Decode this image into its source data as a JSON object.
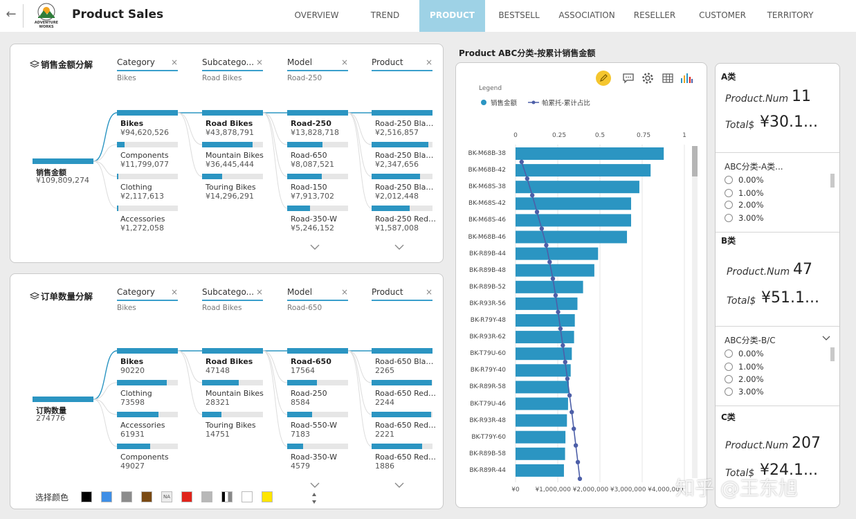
{
  "header": {
    "title": "Product Sales",
    "logo_text": [
      "ADVENTURE",
      "WORKS"
    ],
    "tabs": [
      {
        "label": "OVERVIEW",
        "active": false
      },
      {
        "label": "TREND",
        "active": false
      },
      {
        "label": "PRODUCT",
        "active": true
      },
      {
        "label": "BESTSELL",
        "active": false
      },
      {
        "label": "ASSOCIATION",
        "active": false
      },
      {
        "label": "RESELLER",
        "active": false
      },
      {
        "label": "CUSTOMER",
        "active": false
      },
      {
        "label": "TERRITORY",
        "active": false
      }
    ]
  },
  "decomp_sales": {
    "title": "销售金额分解",
    "root": {
      "label": "销售金额",
      "value": "¥109,809,274"
    },
    "columns": [
      {
        "header": "Category",
        "selected": "Bikes",
        "nodes": [
          {
            "label": "Bikes",
            "value": "¥94,620,526",
            "fill": 1.0,
            "selected": true
          },
          {
            "label": "Components",
            "value": "¥11,799,077",
            "fill": 0.125
          },
          {
            "label": "Clothing",
            "value": "¥2,117,613",
            "fill": 0.022
          },
          {
            "label": "Accessories",
            "value": "¥1,272,058",
            "fill": 0.013
          }
        ]
      },
      {
        "header": "Subcatego...",
        "selected": "Road Bikes",
        "nodes": [
          {
            "label": "Road Bikes",
            "value": "¥43,878,791",
            "fill": 1.0,
            "selected": true
          },
          {
            "label": "Mountain Bikes",
            "value": "¥36,445,444",
            "fill": 0.83
          },
          {
            "label": "Touring Bikes",
            "value": "¥14,296,291",
            "fill": 0.326
          }
        ]
      },
      {
        "header": "Model",
        "selected": "Road-250",
        "nodes": [
          {
            "label": "Road-250",
            "value": "¥13,828,718",
            "fill": 1.0,
            "selected": true
          },
          {
            "label": "Road-650",
            "value": "¥8,087,521",
            "fill": 0.585
          },
          {
            "label": "Road-150",
            "value": "¥7,913,702",
            "fill": 0.572
          },
          {
            "label": "Road-350-W",
            "value": "¥5,246,152",
            "fill": 0.379
          }
        ]
      },
      {
        "header": "Product",
        "selected": "",
        "nodes": [
          {
            "label": "Road-250 Black...",
            "value": "¥2,516,857",
            "fill": 1.0
          },
          {
            "label": "Road-250 Black...",
            "value": "¥2,347,656",
            "fill": 0.933
          },
          {
            "label": "Road-250 Black...",
            "value": "¥2,012,448",
            "fill": 0.8
          },
          {
            "label": "Road-250 Red, ...",
            "value": "¥1,587,008",
            "fill": 0.63
          }
        ]
      }
    ]
  },
  "decomp_orders": {
    "title": "订单数量分解",
    "root": {
      "label": "订购数量",
      "value": "274776"
    },
    "columns": [
      {
        "header": "Category",
        "selected": "Bikes",
        "nodes": [
          {
            "label": "Bikes",
            "value": "90220",
            "fill": 1.0,
            "selected": true
          },
          {
            "label": "Clothing",
            "value": "73598",
            "fill": 0.816
          },
          {
            "label": "Accessories",
            "value": "61931",
            "fill": 0.686
          },
          {
            "label": "Components",
            "value": "49027",
            "fill": 0.543
          }
        ]
      },
      {
        "header": "Subcatego...",
        "selected": "Road Bikes",
        "nodes": [
          {
            "label": "Road Bikes",
            "value": "47148",
            "fill": 1.0,
            "selected": true
          },
          {
            "label": "Mountain Bikes",
            "value": "28321",
            "fill": 0.6
          },
          {
            "label": "Touring Bikes",
            "value": "14751",
            "fill": 0.313
          }
        ]
      },
      {
        "header": "Model",
        "selected": "Road-650",
        "nodes": [
          {
            "label": "Road-650",
            "value": "17564",
            "fill": 1.0,
            "selected": true
          },
          {
            "label": "Road-250",
            "value": "8584",
            "fill": 0.489
          },
          {
            "label": "Road-550-W",
            "value": "7183",
            "fill": 0.409
          },
          {
            "label": "Road-350-W",
            "value": "4579",
            "fill": 0.26
          }
        ]
      },
      {
        "header": "Product",
        "selected": "",
        "nodes": [
          {
            "label": "Road-650 Black...",
            "value": "2265",
            "fill": 1.0
          },
          {
            "label": "Road-650 Red, ...",
            "value": "2244",
            "fill": 0.99
          },
          {
            "label": "Road-650 Red, ...",
            "value": "2221",
            "fill": 0.98
          },
          {
            "label": "Road-650 Red, ...",
            "value": "1886",
            "fill": 0.83
          }
        ]
      }
    ]
  },
  "color_picker": {
    "label": "选择颜色",
    "swatches": [
      "#000000",
      "#3f8fe6",
      "#8c8c8c",
      "#7a4a14",
      "NA",
      "#e0241b",
      "#b8b8b8",
      "gradient",
      "#ffffff",
      "#ffe500"
    ]
  },
  "chart_data": {
    "type": "bar",
    "title": "Product ABC分类-按累计销售金额",
    "legend_title": "Legend",
    "legend": [
      "销售金额",
      "帕累托-累计占比"
    ],
    "colors": {
      "bar": "#2b95c2",
      "line": "#4d5fa8"
    },
    "categories": [
      "BK-M68B-38",
      "BK-M68B-42",
      "BK-M68S-38",
      "BK-M68S-42",
      "BK-M68S-46",
      "BK-M68B-46",
      "BK-R89B-44",
      "BK-R89B-48",
      "BK-R89B-52",
      "BK-R93R-56",
      "BK-R79Y-48",
      "BK-R93R-62",
      "BK-T79U-60",
      "BK-R79Y-40",
      "BK-R89R-58",
      "BK-T79U-46",
      "BK-R93R-48",
      "BK-T79Y-60",
      "BK-R89B-58",
      "BK-R89R-44"
    ],
    "series": [
      {
        "name": "销售金额",
        "values": [
          3950000,
          3600000,
          3300000,
          3080000,
          3080000,
          2970000,
          2200000,
          2100000,
          1800000,
          1650000,
          1580000,
          1560000,
          1500000,
          1470000,
          1420000,
          1400000,
          1370000,
          1330000,
          1320000,
          1290000
        ]
      },
      {
        "name": "帕累托-累计占比",
        "values": [
          0.036,
          0.069,
          0.099,
          0.127,
          0.155,
          0.182,
          0.202,
          0.221,
          0.237,
          0.252,
          0.266,
          0.28,
          0.294,
          0.307,
          0.32,
          0.333,
          0.345,
          0.357,
          0.369,
          0.381
        ]
      }
    ],
    "x_bottom_ticks": [
      "¥0",
      "¥1,000,000",
      "¥2,000,000",
      "¥3,000,000",
      "¥4,000,000"
    ],
    "x_bottom_range": [
      0,
      4500000
    ],
    "x_top_ticks": [
      "0",
      "0.25",
      "0.5",
      "0.75",
      "1"
    ],
    "x_top_range": [
      0,
      1
    ],
    "grid": true
  },
  "right_panel": {
    "a": {
      "heading": "A类",
      "num_label": "Product.Num",
      "num_value": "11",
      "total_label": "Total$",
      "total_value": "¥30.1..."
    },
    "slicer_a": {
      "title": "ABC分类-A类...",
      "options": [
        "0.00%",
        "1.00%",
        "2.00%",
        "3.00%"
      ]
    },
    "b": {
      "heading": "B类",
      "num_label": "Product.Num",
      "num_value": "47",
      "total_label": "Total$",
      "total_value": "¥51.1..."
    },
    "slicer_bc": {
      "title": "ABC分类-B/C",
      "options": [
        "0.00%",
        "1.00%",
        "2.00%",
        "3.00%"
      ]
    },
    "c": {
      "heading": "C类",
      "num_label": "Product.Num",
      "num_value": "207",
      "total_label": "Total$",
      "total_value": "¥24.1..."
    }
  },
  "watermark": "知乎 @王东旭"
}
